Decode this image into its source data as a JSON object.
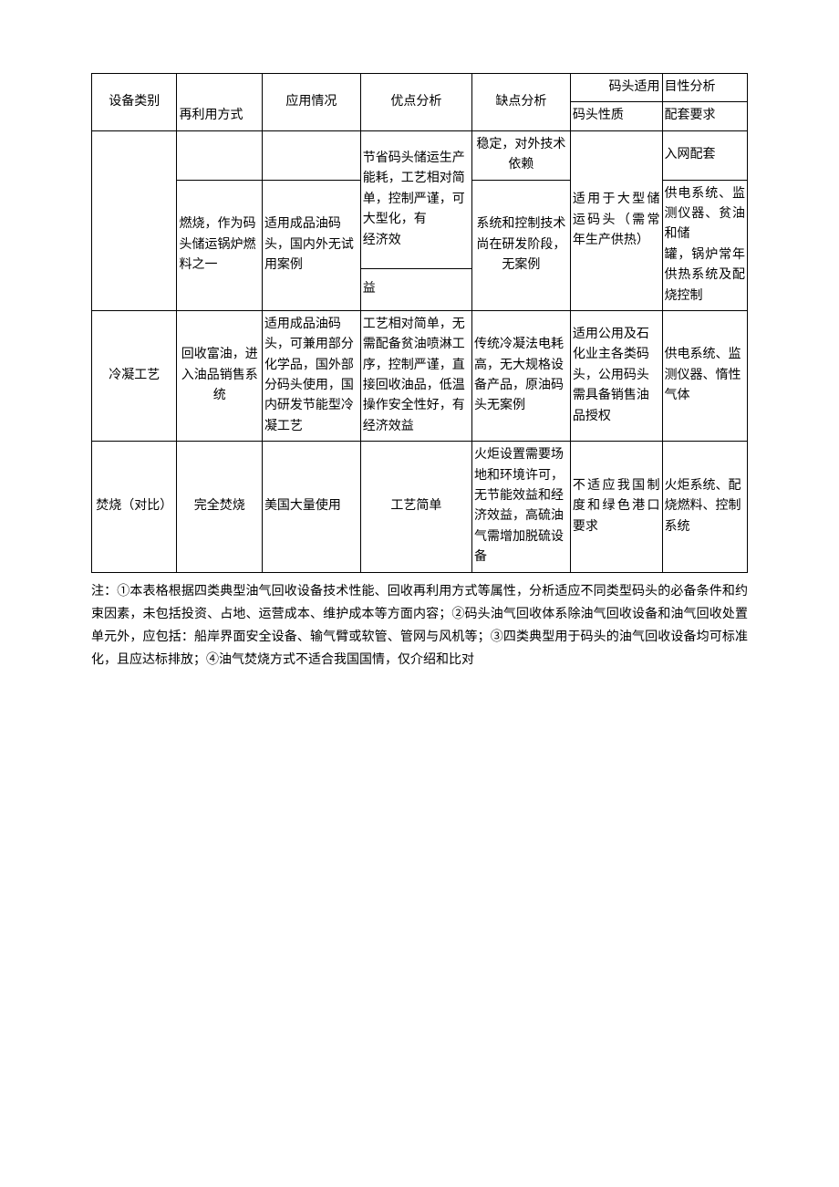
{
  "headers": {
    "col0": "设备类别",
    "col1": "再利用方式",
    "col2": "应用情况",
    "col3": "优点分析",
    "col4": "缺点分析",
    "col56_top": "码头适用",
    "col56_top_r": "目性分析",
    "col5": "码头性质",
    "col6": "配套要求"
  },
  "rows": [
    {
      "c0": "",
      "c1": "",
      "c2": "",
      "c3": "",
      "c4": "稳定，对外技术依赖",
      "c5": "",
      "c6": "入网配套"
    },
    {
      "c0": "",
      "c1": "燃烧，作为码头储运锅炉燃料之一",
      "c2": "适用成品油码头，国内外无试用案例",
      "c3_top": "节省码头储运生产能耗，工艺相对简单，控制严谨，可大型化，有\n经济效",
      "c3_bot": "益",
      "c4": "系统和控制技术尚在研发阶段，无案例",
      "c5": "适用于大型储运码头（需常年生产供热）",
      "c6": "供电系统、监测仪器、贫油和储\n罐，锅炉常年供热系统及配烧控制"
    },
    {
      "c0": "冷凝工艺",
      "c1": "回收富油，进入油品销售系统",
      "c2": "适用成品油码头，可兼用部分化学品，国外部分码头使用，国内研发节能型冷凝工艺",
      "c3": "工艺相对简单，无需配备贫油喷淋工序，控制严谨，直接回收油品，低温操作安全性好，有\n经济效益",
      "c4": "传统冷凝法电耗高，无大规格设备产品，原油码头无案例",
      "c5": "适用公用及石化业主各类码头，公用码头需具备销售油品授权",
      "c6": "供电系统、监测仪器、惰性气体"
    },
    {
      "c0": "焚烧（对比）",
      "c1": "完全焚烧",
      "c2": "美国大量使用",
      "c3": "工艺简单",
      "c4": "火炬设置需要场地和环境许可，无节能效益和经济效益，高硫油气需增加脱硫设备",
      "c5": "不适应我国制度和绿色港口要求",
      "c6": "火炬系统、配烧燃料、控制系统"
    }
  ],
  "note": "注：①本表格根据四类典型油气回收设备技术性能、回收再利用方式等属性，分析适应不同类型码头的必备条件和约束因素，未包括投资、占地、运营成本、维护成本等方面内容；②码头油气回收体系除油气回收设备和油气回收处置单元外，应包括：船岸界面安全设备、输气臂或软管、管网与风机等；③四类典型用于码头的油气回收设备均可标准化，且应达标排放；④油气焚烧方式不适合我国国情，仅介绍和比对"
}
